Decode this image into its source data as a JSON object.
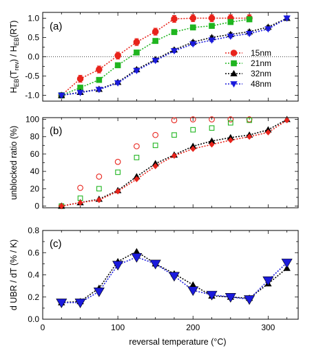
{
  "chart_data": [
    {
      "type": "line",
      "panel_label": "(a)",
      "ylabel": "H_EB(T_rev) / H_EB(RT)",
      "xlim": [
        0,
        340
      ],
      "ylim": [
        -1.15,
        1.15
      ],
      "yticks": [
        -1.0,
        -0.5,
        0.0,
        0.5,
        1.0
      ],
      "ytick_labels": [
        "-1.0",
        "-0.5",
        "0.0",
        "0.5",
        "1.0"
      ],
      "reference_line_y": 0,
      "legend_position": "center-right",
      "series": [
        {
          "name": "15nm",
          "color": "#e8231b",
          "marker": "circle",
          "x": [
            25,
            50,
            75,
            100,
            125,
            150,
            175,
            200,
            225,
            250,
            275
          ],
          "y": [
            -1.0,
            -0.57,
            -0.33,
            0.03,
            0.38,
            0.65,
            0.98,
            1.0,
            1.0,
            1.0,
            1.0
          ],
          "yerr": [
            0.07,
            0.09,
            0.09,
            0.09,
            0.09,
            0.09,
            0.09,
            0.09,
            0.09,
            0.09,
            0.09
          ]
        },
        {
          "name": "21nm",
          "color": "#1fb51f",
          "marker": "square",
          "x": [
            25,
            50,
            75,
            100,
            125,
            150,
            175,
            200,
            225,
            250,
            275
          ],
          "y": [
            -1.0,
            -0.8,
            -0.6,
            -0.22,
            0.11,
            0.41,
            0.64,
            0.76,
            0.8,
            0.9,
            0.97
          ],
          "yerr": [
            0.07,
            0.05,
            0.05,
            0.05,
            0.05,
            0.05,
            0.05,
            0.05,
            0.05,
            0.05,
            0.05
          ]
        },
        {
          "name": "32nm",
          "color": "#000000",
          "marker": "triangle-up",
          "x": [
            25,
            50,
            75,
            100,
            125,
            150,
            175,
            200,
            225,
            250,
            275,
            300,
            325
          ],
          "y": [
            -1.0,
            -0.92,
            -0.84,
            -0.66,
            -0.33,
            -0.07,
            0.18,
            0.38,
            0.5,
            0.58,
            0.65,
            0.77,
            1.0
          ],
          "yerr": [
            0.04,
            0.04,
            0.04,
            0.04,
            0.04,
            0.04,
            0.04,
            0.04,
            0.04,
            0.04,
            0.04,
            0.04,
            0.04
          ]
        },
        {
          "name": "48nm",
          "color": "#1a1adc",
          "marker": "triangle-down",
          "x": [
            25,
            50,
            75,
            100,
            125,
            150,
            175,
            200,
            225,
            250,
            275,
            300,
            325
          ],
          "y": [
            -1.0,
            -0.93,
            -0.85,
            -0.68,
            -0.36,
            -0.1,
            0.15,
            0.33,
            0.43,
            0.53,
            0.6,
            0.72,
            1.0
          ],
          "yerr": [
            0.04,
            0.04,
            0.04,
            0.04,
            0.04,
            0.04,
            0.04,
            0.04,
            0.04,
            0.04,
            0.04,
            0.04,
            0.04
          ]
        }
      ]
    },
    {
      "type": "scatter",
      "panel_label": "(b)",
      "ylabel": "unblocked ratio (%)",
      "xlim": [
        0,
        340
      ],
      "ylim": [
        -2,
        102
      ],
      "yticks": [
        0,
        20,
        40,
        60,
        80,
        100
      ],
      "ytick_labels": [
        "0",
        "20",
        "40",
        "60",
        "80",
        "100"
      ],
      "series": [
        {
          "name": "15nm",
          "color": "#e8231b",
          "marker": "circle-open",
          "x": [
            25,
            50,
            75,
            100,
            125,
            150,
            175,
            200,
            225,
            250,
            275
          ],
          "y": [
            0,
            21,
            34,
            51,
            69,
            82,
            99,
            100,
            100,
            100,
            100
          ]
        },
        {
          "name": "21nm",
          "color": "#1fb51f",
          "marker": "square-open",
          "x": [
            25,
            50,
            75,
            100,
            125,
            150,
            175,
            200,
            225,
            250,
            275
          ],
          "y": [
            0,
            9,
            20,
            39,
            56,
            70,
            82,
            88,
            90,
            96,
            99
          ]
        },
        {
          "name": "32nm",
          "color": "#000000",
          "marker": "triangle-up",
          "connected": true,
          "x": [
            25,
            50,
            75,
            100,
            125,
            150,
            175,
            200,
            225,
            250,
            275,
            300,
            325
          ],
          "y": [
            0,
            4,
            8,
            18,
            34,
            49,
            59,
            69,
            75,
            79,
            82,
            88,
            100
          ]
        },
        {
          "name": "filled red",
          "color": "#e8231b",
          "marker": "diamond",
          "connected": true,
          "x": [
            25,
            50,
            75,
            100,
            125,
            150,
            175,
            200,
            225,
            250,
            275,
            300,
            325
          ],
          "y": [
            0,
            4,
            7,
            17,
            31,
            46,
            58,
            66,
            71,
            76,
            80,
            85,
            99
          ]
        }
      ]
    },
    {
      "type": "line",
      "panel_label": "(c)",
      "ylabel": "d UBR / dT (% / K)",
      "xlabel": "reversal temperature (°C)",
      "xlim": [
        0,
        340
      ],
      "ylim": [
        0,
        0.8
      ],
      "xticks": [
        0,
        100,
        200,
        300
      ],
      "xtick_labels": [
        "0",
        "100",
        "200",
        "300"
      ],
      "yticks": [
        0.0,
        0.2,
        0.4,
        0.6,
        0.8
      ],
      "ytick_labels": [
        "0.0",
        "0.2",
        "0.4",
        "0.6",
        "0.8"
      ],
      "series": [
        {
          "name": "32nm",
          "color": "#000000",
          "marker": "triangle-up",
          "x": [
            25,
            50,
            75,
            100,
            125,
            150,
            175,
            200,
            225,
            250,
            275,
            300,
            325
          ],
          "y": [
            0.15,
            0.16,
            0.28,
            0.52,
            0.61,
            0.5,
            0.41,
            0.31,
            0.21,
            0.2,
            0.19,
            0.32,
            0.46
          ]
        },
        {
          "name": "48nm",
          "color": "#1a1adc",
          "marker": "triangle-down",
          "x": [
            25,
            50,
            75,
            100,
            125,
            150,
            175,
            200,
            225,
            250,
            275,
            300,
            325
          ],
          "y": [
            0.15,
            0.15,
            0.25,
            0.49,
            0.56,
            0.5,
            0.39,
            0.26,
            0.22,
            0.2,
            0.18,
            0.35,
            0.51
          ]
        }
      ]
    }
  ]
}
